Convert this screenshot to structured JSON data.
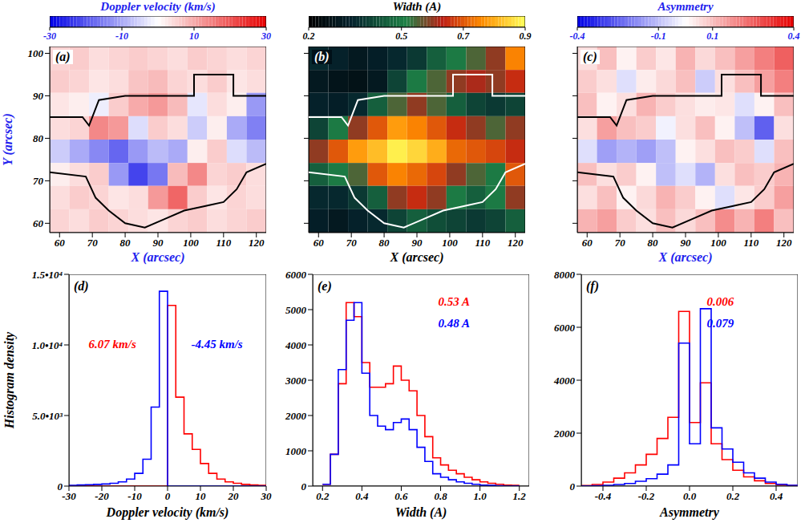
{
  "chart_data": [
    {
      "type": "heatmap",
      "title": "Doppler velocity (km/s)",
      "panel_label": "(a)",
      "x_label": "X (arcsec)",
      "y_label": "Y (arcsec)",
      "xlim": [
        57,
        123
      ],
      "xticks": [
        60,
        70,
        80,
        90,
        100,
        110,
        120
      ],
      "ylim": [
        57.8,
        101.6
      ],
      "yticks": [
        60,
        70,
        80,
        90,
        100
      ],
      "x_edges": [
        57,
        63,
        69,
        75,
        81,
        87,
        93,
        99,
        105,
        111,
        117,
        123
      ],
      "y_edges": [
        101.6,
        96.1,
        90.7,
        85.2,
        79.7,
        74.2,
        68.8,
        63.3,
        57.8
      ],
      "cells": [
        [
          5,
          6,
          4,
          5,
          6,
          5,
          4,
          6,
          5,
          4,
          5
        ],
        [
          6,
          5,
          3,
          4,
          7,
          8,
          5,
          4,
          6,
          3,
          4
        ],
        [
          3,
          2,
          -2,
          6,
          10,
          12,
          8,
          -3,
          4,
          2,
          -12
        ],
        [
          4,
          5,
          14,
          12,
          -4,
          6,
          4,
          -6,
          2,
          -10,
          -15
        ],
        [
          -6,
          -10,
          -14,
          -18,
          -12,
          -8,
          -10,
          2,
          6,
          -4,
          -8
        ],
        [
          2,
          4,
          6,
          -12,
          -22,
          -16,
          8,
          14,
          5,
          6,
          4
        ],
        [
          4,
          6,
          5,
          3,
          4,
          12,
          18,
          6,
          3,
          5,
          4
        ],
        [
          5,
          4,
          6,
          5,
          4,
          3,
          5,
          6,
          4,
          5,
          6
        ]
      ],
      "colorbar": {
        "range": [
          -30,
          30
        ],
        "ticks": [
          -30,
          -10,
          10,
          30
        ]
      },
      "contours": [
        {
          "x": [
            57,
            67,
            69,
            72,
            80,
            95,
            101,
            101,
            113,
            113,
            123
          ],
          "y": [
            85,
            85,
            83,
            89,
            90,
            90,
            90,
            95,
            95,
            90,
            90
          ]
        },
        {
          "x": [
            57,
            68,
            71,
            75,
            80,
            86,
            92,
            98,
            104,
            110,
            114,
            117,
            123
          ],
          "y": [
            72,
            71,
            66,
            63,
            60,
            59,
            61,
            63,
            64,
            65,
            68,
            72,
            74
          ]
        }
      ]
    },
    {
      "type": "heatmap",
      "title": "Width (A)",
      "panel_label": "(b)",
      "x_label": "X (arcsec)",
      "tick_labels": "x",
      "xlim": [
        57,
        123
      ],
      "xticks": [
        60,
        70,
        80,
        90,
        100,
        110,
        120
      ],
      "ylim": [
        57.8,
        101.6
      ],
      "yticks": [
        60,
        70,
        80,
        90,
        100
      ],
      "x_edges": [
        57,
        63,
        69,
        75,
        81,
        87,
        93,
        99,
        105,
        111,
        117,
        123
      ],
      "y_edges": [
        101.6,
        96.1,
        90.7,
        85.2,
        79.7,
        74.2,
        68.8,
        63.3,
        57.8
      ],
      "cells": [
        [
          0.35,
          0.33,
          0.3,
          0.32,
          0.35,
          0.38,
          0.45,
          0.5,
          0.55,
          0.6,
          0.75
        ],
        [
          0.3,
          0.28,
          0.27,
          0.3,
          0.4,
          0.5,
          0.55,
          0.6,
          0.62,
          0.6,
          0.65
        ],
        [
          0.33,
          0.32,
          0.35,
          0.45,
          0.55,
          0.6,
          0.55,
          0.45,
          0.4,
          0.38,
          0.4
        ],
        [
          0.4,
          0.5,
          0.6,
          0.7,
          0.78,
          0.75,
          0.7,
          0.65,
          0.6,
          0.55,
          0.6
        ],
        [
          0.6,
          0.7,
          0.78,
          0.82,
          0.88,
          0.85,
          0.8,
          0.72,
          0.7,
          0.68,
          0.65
        ],
        [
          0.45,
          0.5,
          0.55,
          0.7,
          0.75,
          0.72,
          0.68,
          0.6,
          0.55,
          0.5,
          0.7
        ],
        [
          0.35,
          0.35,
          0.38,
          0.45,
          0.6,
          0.65,
          0.6,
          0.5,
          0.45,
          0.5,
          0.6
        ],
        [
          0.32,
          0.3,
          0.33,
          0.35,
          0.4,
          0.45,
          0.42,
          0.4,
          0.38,
          0.4,
          0.45
        ]
      ],
      "colorbar": {
        "range": [
          0.2,
          0.9
        ],
        "ticks": [
          0.2,
          0.5,
          0.7,
          0.9
        ]
      },
      "contours": [
        {
          "x": [
            57,
            67,
            69,
            72,
            80,
            95,
            101,
            101,
            113,
            113,
            123
          ],
          "y": [
            85,
            85,
            83,
            89,
            90,
            90,
            90,
            95,
            95,
            90,
            90
          ]
        },
        {
          "x": [
            57,
            68,
            71,
            75,
            80,
            86,
            92,
            98,
            104,
            110,
            114,
            117,
            123
          ],
          "y": [
            72,
            71,
            66,
            63,
            60,
            59,
            61,
            63,
            64,
            65,
            68,
            72,
            74
          ]
        }
      ]
    },
    {
      "type": "heatmap",
      "title": "Asymmetry",
      "panel_label": "(c)",
      "x_label": "X (arcsec)",
      "tick_labels": "x",
      "xlim": [
        57,
        123
      ],
      "xticks": [
        60,
        70,
        80,
        90,
        100,
        110,
        120
      ],
      "ylim": [
        57.8,
        101.6
      ],
      "yticks": [
        60,
        70,
        80,
        90,
        100
      ],
      "x_edges": [
        57,
        63,
        69,
        75,
        81,
        87,
        93,
        99,
        105,
        111,
        117,
        123
      ],
      "y_edges": [
        101.6,
        96.1,
        90.7,
        85.2,
        79.7,
        74.2,
        68.8,
        63.3,
        57.8
      ],
      "cells": [
        [
          0.05,
          0.1,
          0.02,
          0.08,
          0.04,
          0.12,
          0.06,
          0.1,
          0.15,
          0.2,
          0.25
        ],
        [
          0.08,
          0.05,
          -0.05,
          0.03,
          0.06,
          0.1,
          -0.08,
          0.05,
          0.1,
          0.15,
          0.2
        ],
        [
          0.1,
          0.02,
          0.05,
          0.12,
          0.08,
          0.05,
          0.03,
          0.04,
          -0.05,
          0.02,
          0.1
        ],
        [
          0.05,
          0.15,
          0.1,
          0.08,
          -0.02,
          0.05,
          0.1,
          0.02,
          -0.1,
          -0.25,
          0.05
        ],
        [
          -0.05,
          -0.15,
          -0.12,
          -0.15,
          -0.1,
          0.02,
          0.05,
          0.1,
          0.08,
          -0.05,
          0.1
        ],
        [
          0.1,
          0.05,
          0.08,
          0.02,
          -0.1,
          -0.05,
          -0.12,
          0.05,
          0.1,
          0.08,
          0.12
        ],
        [
          0.05,
          0.1,
          0.02,
          0.06,
          0.12,
          0.08,
          0.02,
          -0.05,
          0.04,
          0.08,
          0.15
        ],
        [
          0.12,
          0.15,
          0.08,
          0.05,
          0.1,
          0.06,
          0.1,
          0.18,
          0.12,
          0.2,
          0.1
        ]
      ],
      "colorbar": {
        "range": [
          -0.4,
          0.4
        ],
        "ticks": [
          -0.4,
          -0.1,
          0.1,
          0.4
        ]
      },
      "contours": [
        {
          "x": [
            57,
            67,
            69,
            72,
            80,
            95,
            101,
            101,
            113,
            113,
            123
          ],
          "y": [
            85,
            85,
            83,
            89,
            90,
            90,
            90,
            95,
            95,
            90,
            90
          ]
        },
        {
          "x": [
            57,
            68,
            71,
            75,
            80,
            86,
            92,
            98,
            104,
            110,
            114,
            117,
            123
          ],
          "y": [
            72,
            71,
            66,
            63,
            60,
            59,
            61,
            63,
            64,
            65,
            68,
            72,
            74
          ]
        }
      ]
    },
    {
      "type": "histogram",
      "panel_label": "(d)",
      "x_label": "Doppler velocity (km/s)",
      "y_label": "Histogram density",
      "xlim": [
        -30,
        30
      ],
      "xticks": [
        -30,
        -20,
        -10,
        0,
        10,
        20,
        30
      ],
      "ylim": [
        0,
        15000
      ],
      "yticks": [
        0,
        {
          "value": 5000,
          "label": "5.0•10³"
        },
        {
          "value": 10000,
          "label": "1.0•10⁴"
        },
        {
          "value": 15000,
          "label": "1.5•10⁴"
        }
      ],
      "bins": [
        -30,
        -27.5,
        -25,
        -22.5,
        -20,
        -17.5,
        -15,
        -12.5,
        -10,
        -7.5,
        -5,
        -2.5,
        0,
        2.5,
        5,
        7.5,
        10,
        12.5,
        15,
        17.5,
        20,
        22.5,
        25,
        27.5,
        30
      ],
      "series": [
        {
          "color": "#ff0000",
          "annotation": "6.07 km/s",
          "values": [
            0,
            0,
            0,
            0,
            0,
            0,
            0,
            0,
            0,
            0,
            0,
            0,
            12800,
            6300,
            3700,
            2600,
            1600,
            900,
            500,
            300,
            200,
            120,
            80,
            50
          ]
        },
        {
          "color": "#0000ff",
          "annotation": "-4.45 km/s",
          "values": [
            60,
            80,
            100,
            120,
            150,
            200,
            300,
            500,
            900,
            1900,
            5600,
            13800,
            0,
            0,
            0,
            0,
            0,
            0,
            0,
            0,
            0,
            0,
            0,
            0
          ]
        }
      ]
    },
    {
      "type": "histogram",
      "panel_label": "(e)",
      "x_label": "Width (A)",
      "xlim": [
        0.15,
        1.25
      ],
      "xticks": [
        0.2,
        0.4,
        0.6,
        0.8,
        {
          "value": 1,
          "label": "1.0"
        },
        1.2
      ],
      "ylim": [
        0,
        6000
      ],
      "yticks": [
        0,
        1000,
        2000,
        3000,
        4000,
        5000,
        6000
      ],
      "bins": [
        0.2,
        0.24,
        0.28,
        0.32,
        0.36,
        0.4,
        0.44,
        0.48,
        0.52,
        0.56,
        0.6,
        0.64,
        0.68,
        0.72,
        0.76,
        0.8,
        0.84,
        0.88,
        0.92,
        0.96,
        1.0,
        1.04,
        1.08,
        1.12,
        1.16,
        1.2
      ],
      "series": [
        {
          "color": "#ff0000",
          "annotation": "0.53 A",
          "values": [
            50,
            900,
            2900,
            5200,
            4800,
            3500,
            2800,
            2800,
            2900,
            3400,
            3000,
            2700,
            2000,
            1400,
            800,
            600,
            450,
            350,
            250,
            180,
            120,
            80,
            50,
            30,
            20
          ]
        },
        {
          "color": "#0000ff",
          "annotation": "0.48 A",
          "values": [
            50,
            900,
            3300,
            4700,
            5200,
            3200,
            2000,
            1700,
            1600,
            1800,
            1900,
            1600,
            1100,
            700,
            350,
            250,
            180,
            120,
            80,
            50,
            30,
            20,
            10,
            5,
            5
          ]
        }
      ]
    },
    {
      "type": "histogram",
      "panel_label": "(f)",
      "x_label": "Asymmetry",
      "xlim": [
        -0.5,
        0.5
      ],
      "xticks": [
        -0.4,
        -0.2,
        {
          "value": 0,
          "label": "0.0"
        },
        0.2,
        0.4
      ],
      "ylim": [
        0,
        8000
      ],
      "yticks": [
        0,
        2000,
        4000,
        6000,
        8000
      ],
      "bins": [
        -0.5,
        -0.45,
        -0.4,
        -0.35,
        -0.3,
        -0.25,
        -0.2,
        -0.15,
        -0.1,
        -0.05,
        0,
        0.05,
        0.1,
        0.15,
        0.2,
        0.25,
        0.3,
        0.35,
        0.4,
        0.45,
        0.5
      ],
      "series": [
        {
          "color": "#ff0000",
          "annotation": "0.006",
          "values": [
            20,
            60,
            150,
            300,
            500,
            800,
            1200,
            1800,
            2600,
            6600,
            2400,
            3900,
            1600,
            1000,
            600,
            350,
            200,
            100,
            50,
            20
          ]
        },
        {
          "color": "#0000ff",
          "annotation": "0.079",
          "values": [
            5,
            10,
            30,
            60,
            100,
            180,
            280,
            450,
            800,
            5400,
            1600,
            6700,
            2200,
            1400,
            900,
            500,
            300,
            150,
            70,
            30
          ]
        }
      ]
    }
  ]
}
